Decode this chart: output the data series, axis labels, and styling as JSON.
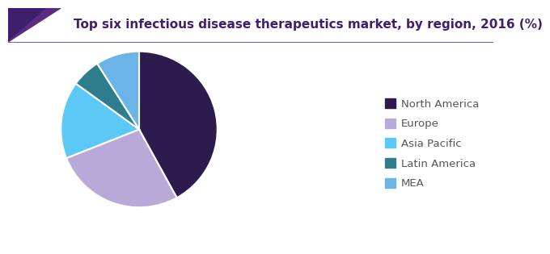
{
  "title": "Top six infectious disease therapeutics market, by region, 2016 (%)",
  "labels": [
    "North America",
    "Europe",
    "Asia Pacific",
    "Latin America",
    "MEA"
  ],
  "values": [
    42,
    27,
    16,
    6,
    9
  ],
  "colors": [
    "#2d1b4e",
    "#b8a9d9",
    "#5bc8f5",
    "#2e7d8c",
    "#6ab4e8"
  ],
  "startangle": 90,
  "legend_labels": [
    "North America",
    "Europe",
    "Asia Pacific",
    "Latin America",
    "MEA"
  ],
  "background_color": "#ffffff",
  "title_fontsize": 11,
  "legend_fontsize": 9.5,
  "title_color": "#3d1f6e",
  "header_bar_color1": "#5a2d82",
  "header_bar_color2": "#3d1f6e",
  "line_color": "#7b5ea7",
  "wedge_edge_color": "#ffffff",
  "wedge_linewidth": 1.5
}
